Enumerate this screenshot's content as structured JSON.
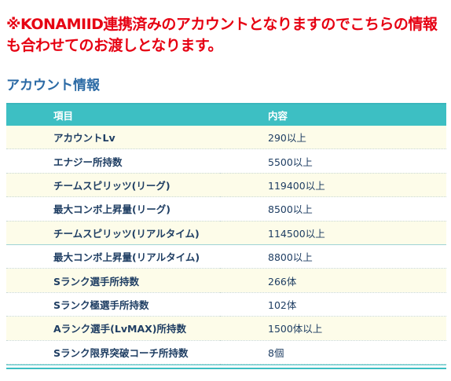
{
  "notice": "※KONAMIID連携済みのアカウントとなりますのでこちらの情報も合わせてのお渡しとなります。",
  "section_title": "アカウント情報",
  "table": {
    "headers": [
      "項目",
      "内容"
    ],
    "rows": [
      {
        "item": "アカウントLv",
        "value": "290以上"
      },
      {
        "item": "エナジー所持数",
        "value": "5500以上"
      },
      {
        "item": "チームスピリッツ(リーグ)",
        "value": "119400以上"
      },
      {
        "item": "最大コンボ上昇量(リーグ)",
        "value": "8500以上"
      },
      {
        "item": "チームスピリッツ(リアルタイム)",
        "value": "114500以上"
      },
      {
        "item": "最大コンボ上昇量(リアルタイム)",
        "value": "8800以上"
      },
      {
        "item": "Sランク選手所持数",
        "value": "266体"
      },
      {
        "item": "Sランク極選手所持数",
        "value": "102体"
      },
      {
        "item": "Aランク選手(LvMAX)所持数",
        "value": "1500体以上"
      },
      {
        "item": "Sランク限界突破コーチ所持数",
        "value": "8個"
      }
    ]
  },
  "colors": {
    "notice": "#e60012",
    "title": "#2b6aa5",
    "header_bg": "#3dbfc3",
    "row_alt_bg": "#fdfce9"
  }
}
